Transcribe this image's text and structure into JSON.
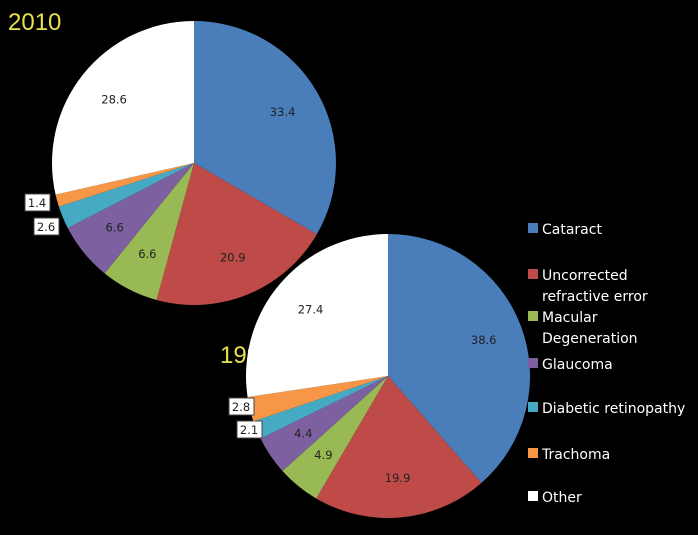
{
  "chart_data": [
    {
      "type": "pie",
      "title": "2010",
      "labels": [
        "Cataract",
        "Uncorrected refractive error",
        "Macular Degeneration",
        "Glaucoma",
        "Diabetic retinopathy",
        "Trachoma",
        "Other"
      ],
      "values": [
        33.4,
        20.9,
        6.6,
        6.6,
        2.6,
        1.4,
        28.6
      ],
      "value_labels": [
        "33.4",
        "20.9",
        "6.6",
        "6.6",
        "2.6",
        "1.4",
        "28.6"
      ]
    },
    {
      "type": "pie",
      "title": "1990",
      "labels": [
        "Cataract",
        "Uncorrected refractive error",
        "Macular Degeneration",
        "Glaucoma",
        "Diabetic retinopathy",
        "Trachoma",
        "Other"
      ],
      "values": [
        38.6,
        19.9,
        4.9,
        4.4,
        2.1,
        2.8,
        27.4
      ],
      "value_labels": [
        "38.6",
        "19.9",
        "4.9",
        "4.4",
        "2.1",
        "2.8",
        "27.4"
      ]
    }
  ],
  "legend": {
    "placement": "right",
    "items": [
      {
        "lines": [
          "Cataract"
        ],
        "color": "#4a7ebb"
      },
      {
        "lines": [
          "Uncorrected",
          "refractive error"
        ],
        "color": "#be4b48"
      },
      {
        "lines": [
          "Macular",
          "Degeneration"
        ],
        "color": "#98b954"
      },
      {
        "lines": [
          "Glaucoma"
        ],
        "color": "#7d60a0"
      },
      {
        "lines": [
          "Diabetic retinopathy"
        ],
        "color": "#46aac5"
      },
      {
        "lines": [
          "Trachoma"
        ],
        "color": "#f79646"
      },
      {
        "lines": [
          "Other"
        ],
        "color": "#ffffff"
      }
    ]
  }
}
